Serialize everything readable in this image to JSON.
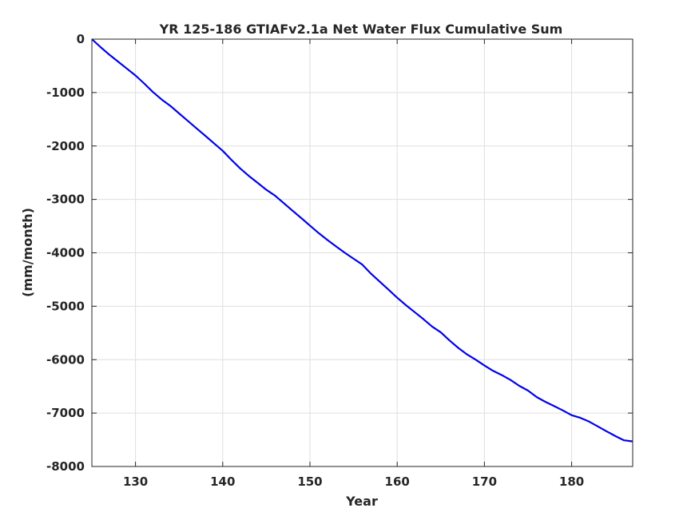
{
  "chart_data": {
    "type": "line",
    "title": "YR 125-186 GTIAFv2.1a Net Water Flux Cumulative Sum",
    "xlabel": "Year",
    "ylabel": "(mm/month)",
    "xlim": [
      125,
      187
    ],
    "ylim": [
      -8000,
      0
    ],
    "xticks": [
      130,
      140,
      150,
      160,
      170,
      180
    ],
    "yticks": [
      0,
      -1000,
      -2000,
      -3000,
      -4000,
      -5000,
      -6000,
      -7000,
      -8000
    ],
    "xtick_labels": [
      "130",
      "140",
      "150",
      "160",
      "170",
      "180"
    ],
    "ytick_labels": [
      "0",
      "-1000",
      "-2000",
      "-3000",
      "-4000",
      "-5000",
      "-6000",
      "-7000",
      "-8000"
    ],
    "grid": true,
    "line_color": "#0000ee",
    "series": [
      {
        "x": [
          125,
          126,
          127,
          128,
          129,
          130,
          131,
          132,
          133,
          134,
          135,
          136,
          137,
          138,
          139,
          140,
          141,
          142,
          143,
          144,
          145,
          146,
          147,
          148,
          149,
          150,
          151,
          152,
          153,
          154,
          155,
          156,
          157,
          158,
          159,
          160,
          161,
          162,
          163,
          164,
          165,
          166,
          167,
          168,
          169,
          170,
          171,
          172,
          173,
          174,
          175,
          176,
          177,
          178,
          179,
          180,
          181,
          182,
          183,
          184,
          185,
          186,
          187
        ],
        "values": [
          0,
          -150,
          -290,
          -420,
          -550,
          -680,
          -830,
          -990,
          -1130,
          -1250,
          -1390,
          -1530,
          -1670,
          -1810,
          -1950,
          -2090,
          -2260,
          -2420,
          -2560,
          -2690,
          -2820,
          -2930,
          -3070,
          -3210,
          -3350,
          -3490,
          -3630,
          -3760,
          -3880,
          -4000,
          -4110,
          -4220,
          -4390,
          -4540,
          -4690,
          -4840,
          -4980,
          -5110,
          -5240,
          -5380,
          -5490,
          -5640,
          -5780,
          -5900,
          -6000,
          -6110,
          -6210,
          -6290,
          -6380,
          -6490,
          -6580,
          -6700,
          -6790,
          -6870,
          -6950,
          -7040,
          -7090,
          -7160,
          -7250,
          -7340,
          -7430,
          -7510,
          -7530
        ]
      }
    ]
  }
}
